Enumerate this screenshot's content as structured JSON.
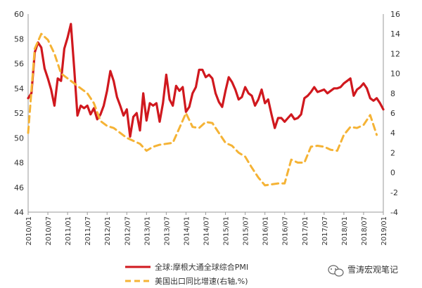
{
  "chart_data": {
    "type": "line",
    "title": "",
    "x_ticks": [
      "2010/01",
      "2010/07",
      "2011/01",
      "2011/07",
      "2012/01",
      "2012/07",
      "2013/01",
      "2013/07",
      "2014/01",
      "2014/07",
      "2015/01",
      "2015/07",
      "2016/01",
      "2016/07",
      "2017/01",
      "2017/07",
      "2018/01",
      "2018/07",
      "2019/01"
    ],
    "y_left": {
      "min": 44,
      "max": 60,
      "ticks": [
        44,
        46,
        48,
        50,
        52,
        54,
        56,
        58,
        60
      ]
    },
    "y_right": {
      "min": -4,
      "max": 16,
      "ticks": [
        -4,
        -2,
        0,
        2,
        4,
        6,
        8,
        10,
        12,
        14,
        16
      ]
    },
    "grid": false,
    "legend_position": "bottom-left",
    "series": [
      {
        "name": "全球:摩根大通全球综合PMI",
        "axis": "left",
        "color": "#d0181e",
        "style": "solid",
        "x": [
          "2010/01",
          "2010/02",
          "2010/03",
          "2010/04",
          "2010/05",
          "2010/06",
          "2010/07",
          "2010/08",
          "2010/09",
          "2010/10",
          "2010/11",
          "2010/12",
          "2011/01",
          "2011/02",
          "2011/03",
          "2011/04",
          "2011/05",
          "2011/06",
          "2011/07",
          "2011/08",
          "2011/09",
          "2011/10",
          "2011/11",
          "2011/12",
          "2012/01",
          "2012/02",
          "2012/03",
          "2012/04",
          "2012/05",
          "2012/06",
          "2012/07",
          "2012/08",
          "2012/09",
          "2012/10",
          "2012/11",
          "2012/12",
          "2013/01",
          "2013/02",
          "2013/03",
          "2013/04",
          "2013/05",
          "2013/06",
          "2013/07",
          "2013/08",
          "2013/09",
          "2013/10",
          "2013/11",
          "2013/12",
          "2014/01",
          "2014/02",
          "2014/03",
          "2014/04",
          "2014/05",
          "2014/06",
          "2014/07",
          "2014/08",
          "2014/09",
          "2014/10",
          "2014/11",
          "2014/12",
          "2015/01",
          "2015/02",
          "2015/03",
          "2015/04",
          "2015/05",
          "2015/06",
          "2015/07",
          "2015/08",
          "2015/09",
          "2015/10",
          "2015/11",
          "2015/12",
          "2016/01",
          "2016/02",
          "2016/03",
          "2016/04",
          "2016/05",
          "2016/06",
          "2016/07",
          "2016/08",
          "2016/09",
          "2016/10",
          "2016/11",
          "2016/12",
          "2017/01",
          "2017/02",
          "2017/03",
          "2017/04",
          "2017/05",
          "2017/06",
          "2017/07",
          "2017/08",
          "2017/09",
          "2017/10",
          "2017/11",
          "2017/12",
          "2018/01",
          "2018/02",
          "2018/03",
          "2018/04",
          "2018/05",
          "2018/06",
          "2018/07",
          "2018/08",
          "2018/09",
          "2018/10",
          "2018/11",
          "2018/12",
          "2019/01"
        ],
        "values": [
          53.2,
          53.6,
          56.9,
          57.7,
          57.3,
          55.6,
          54.8,
          53.9,
          52.6,
          54.8,
          54.6,
          57.2,
          58.1,
          59.2,
          55.6,
          51.8,
          52.6,
          52.4,
          52.6,
          51.9,
          52.4,
          51.5,
          51.9,
          52.6,
          53.8,
          55.4,
          54.6,
          53.3,
          52.6,
          51.8,
          52.3,
          50.1,
          51.7,
          52.0,
          50.6,
          53.6,
          51.4,
          52.8,
          52.6,
          52.8,
          51.3,
          52.8,
          55.1,
          53.1,
          52.6,
          54.2,
          53.8,
          54.1,
          52.1,
          52.5,
          53.6,
          54.1,
          55.5,
          55.5,
          54.9,
          55.1,
          54.8,
          53.6,
          52.9,
          52.5,
          53.8,
          54.9,
          54.5,
          53.9,
          53.1,
          53.3,
          54.1,
          53.6,
          53.4,
          52.6,
          53.1,
          53.9,
          52.8,
          53.1,
          51.9,
          50.8,
          51.6,
          51.6,
          51.3,
          51.6,
          51.9,
          51.5,
          51.6,
          51.9,
          53.2,
          53.4,
          53.7,
          54.1,
          53.7,
          53.8,
          53.9,
          53.6,
          53.8,
          54.0,
          54.0,
          54.1,
          54.4,
          54.6,
          54.8,
          53.4,
          53.9,
          54.1,
          54.4,
          54.0,
          53.2,
          53.0,
          53.2,
          52.8,
          52.3
        ]
      },
      {
        "name": "美国出口同比增速(右轴,%)",
        "axis": "right",
        "color": "#f5b335",
        "style": "dashed",
        "x": [
          "2010/01",
          "2010/03",
          "2010/05",
          "2010/07",
          "2010/09",
          "2010/11",
          "2011/01",
          "2011/03",
          "2011/05",
          "2011/07",
          "2011/09",
          "2011/11",
          "2012/01",
          "2012/03",
          "2012/05",
          "2012/07",
          "2012/09",
          "2012/11",
          "2013/01",
          "2013/03",
          "2013/05",
          "2013/07",
          "2013/09",
          "2013/11",
          "2014/01",
          "2014/03",
          "2014/05",
          "2014/07",
          "2014/09",
          "2014/11",
          "2015/01",
          "2015/03",
          "2015/05",
          "2015/07",
          "2015/09",
          "2015/11",
          "2016/01",
          "2016/03",
          "2016/05",
          "2016/07",
          "2016/09",
          "2016/11",
          "2017/01",
          "2017/03",
          "2017/05",
          "2017/07",
          "2017/09",
          "2017/11",
          "2018/01",
          "2018/03",
          "2018/05",
          "2018/07",
          "2018/09",
          "2018/11"
        ],
        "values": [
          4.0,
          12.5,
          14.0,
          13.4,
          12.0,
          10.0,
          9.5,
          9.0,
          8.5,
          8.0,
          7.0,
          5.2,
          4.7,
          4.5,
          4.0,
          3.5,
          3.2,
          2.9,
          2.2,
          2.6,
          2.8,
          2.9,
          3.0,
          4.5,
          6.0,
          4.6,
          4.5,
          5.1,
          5.0,
          4.0,
          3.0,
          2.7,
          2.0,
          1.6,
          0.5,
          -0.5,
          -1.3,
          -1.2,
          -1.1,
          -1.1,
          1.3,
          1.0,
          1.0,
          2.6,
          2.7,
          2.6,
          2.3,
          2.2,
          3.8,
          4.6,
          4.5,
          4.8,
          5.8,
          3.8
        ]
      }
    ]
  },
  "watermark": {
    "icon": "wechat-icon",
    "text": "雪涛宏观笔记"
  }
}
